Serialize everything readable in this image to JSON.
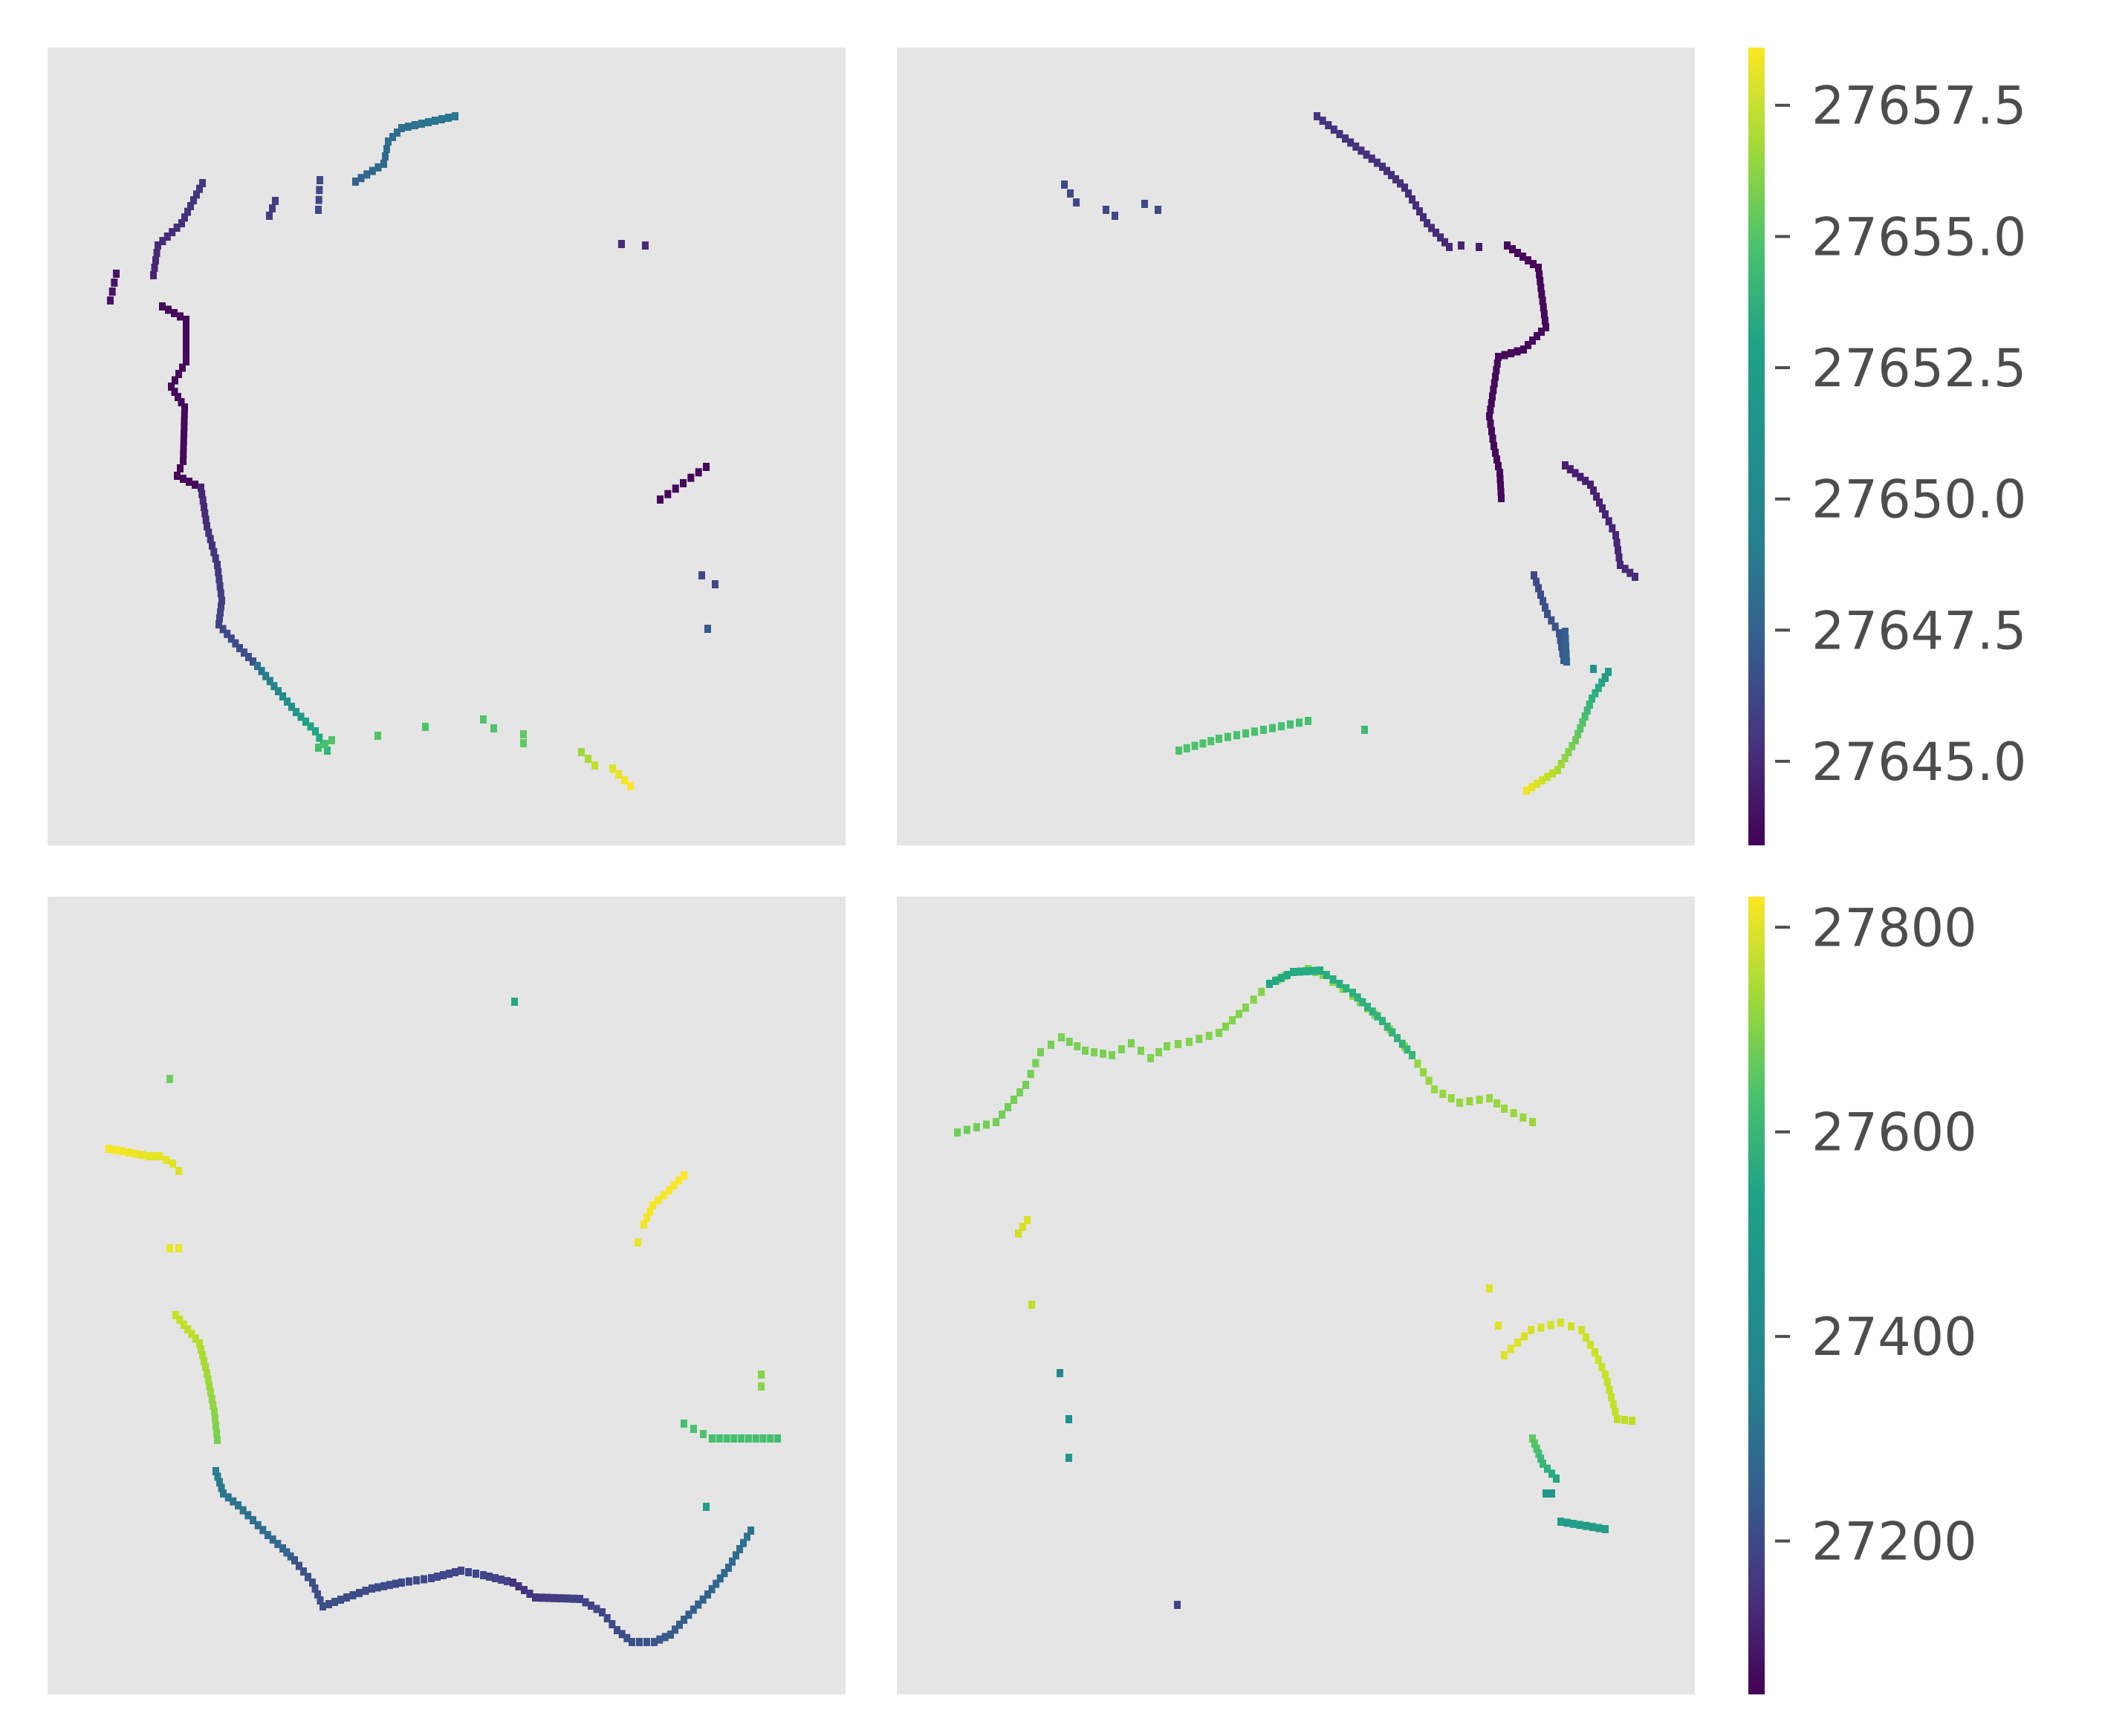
{
  "figure": {
    "panel_background": "#e5e5e5",
    "tick_color": "#4d4d4d",
    "colormap": "viridis"
  },
  "chart_data": [
    {
      "type": "heatmap",
      "title": "",
      "xlabel": "",
      "ylabel": "",
      "grid": false,
      "panels": [
        "top-left",
        "top-right"
      ],
      "colorbar": {
        "range": [
          27643.4,
          27658.6
        ],
        "ticks": [
          27645.0,
          27647.5,
          27650.0,
          27652.5,
          27655.0,
          27657.5
        ],
        "tick_labels": [
          "27645.0",
          "27647.5",
          "27650.0",
          "27652.5",
          "27655.0",
          "27657.5"
        ]
      }
    },
    {
      "type": "heatmap",
      "title": "",
      "xlabel": "",
      "ylabel": "",
      "grid": false,
      "panels": [
        "bottom-left",
        "bottom-right"
      ],
      "colorbar": {
        "range": [
          27050,
          27830
        ],
        "ticks": [
          27200,
          27400,
          27600,
          27800
        ],
        "tick_labels": [
          "27200",
          "27400",
          "27600",
          "27800"
        ]
      }
    }
  ]
}
